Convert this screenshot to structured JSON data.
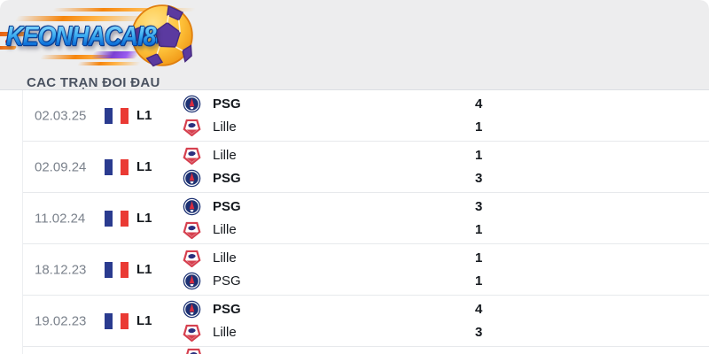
{
  "brand": {
    "name": "KEONHACAI88"
  },
  "section": {
    "title": "CAC TRẠN ĐOI ĐAU"
  },
  "h2h": {
    "rows": [
      {
        "date": "02.03.25",
        "league": "L1",
        "flag": "france-flag-icon",
        "teams": [
          {
            "name": "PSG",
            "crest": "psg-crest-icon",
            "score": "4",
            "winner": true
          },
          {
            "name": "Lille",
            "crest": "lille-crest-icon",
            "score": "1",
            "winner": false
          }
        ]
      },
      {
        "date": "02.09.24",
        "league": "L1",
        "flag": "france-flag-icon",
        "teams": [
          {
            "name": "Lille",
            "crest": "lille-crest-icon",
            "score": "1",
            "winner": false
          },
          {
            "name": "PSG",
            "crest": "psg-crest-icon",
            "score": "3",
            "winner": true
          }
        ]
      },
      {
        "date": "11.02.24",
        "league": "L1",
        "flag": "france-flag-icon",
        "teams": [
          {
            "name": "PSG",
            "crest": "psg-crest-icon",
            "score": "3",
            "winner": true
          },
          {
            "name": "Lille",
            "crest": "lille-crest-icon",
            "score": "1",
            "winner": false
          }
        ]
      },
      {
        "date": "18.12.23",
        "league": "L1",
        "flag": "france-flag-icon",
        "teams": [
          {
            "name": "Lille",
            "crest": "lille-crest-icon",
            "score": "1",
            "winner": false
          },
          {
            "name": "PSG",
            "crest": "psg-crest-icon",
            "score": "1",
            "winner": false
          }
        ]
      },
      {
        "date": "19.02.23",
        "league": "L1",
        "flag": "france-flag-icon",
        "teams": [
          {
            "name": "PSG",
            "crest": "psg-crest-icon",
            "score": "4",
            "winner": true
          },
          {
            "name": "Lille",
            "crest": "lille-crest-icon",
            "score": "3",
            "winner": false
          }
        ]
      }
    ],
    "next_row_peek_crest": "lille-crest-icon"
  },
  "icons": {
    "ball": "soccer-ball-icon",
    "flag": "france-flag-icon",
    "psg": "psg-crest-icon",
    "lille": "lille-crest-icon"
  },
  "colors": {
    "header_bg": "#ededee",
    "brand_blue": "#0d6fd8",
    "streak_orange": "#f6860e",
    "streak_purple": "#7b3fd3",
    "ball_gold": "#ffc53d",
    "ball_purple": "#5b3aa0",
    "date_text": "#7b828c",
    "dark_text": "#15191e",
    "flag_blue": "#2a3b8f",
    "flag_red": "#ea3a34",
    "psg_navy": "#1c3173",
    "psg_red": "#d92c3f",
    "lille_red": "#d6404f",
    "lille_navy": "#2b2f7e",
    "separator": "#e7e9ec"
  }
}
